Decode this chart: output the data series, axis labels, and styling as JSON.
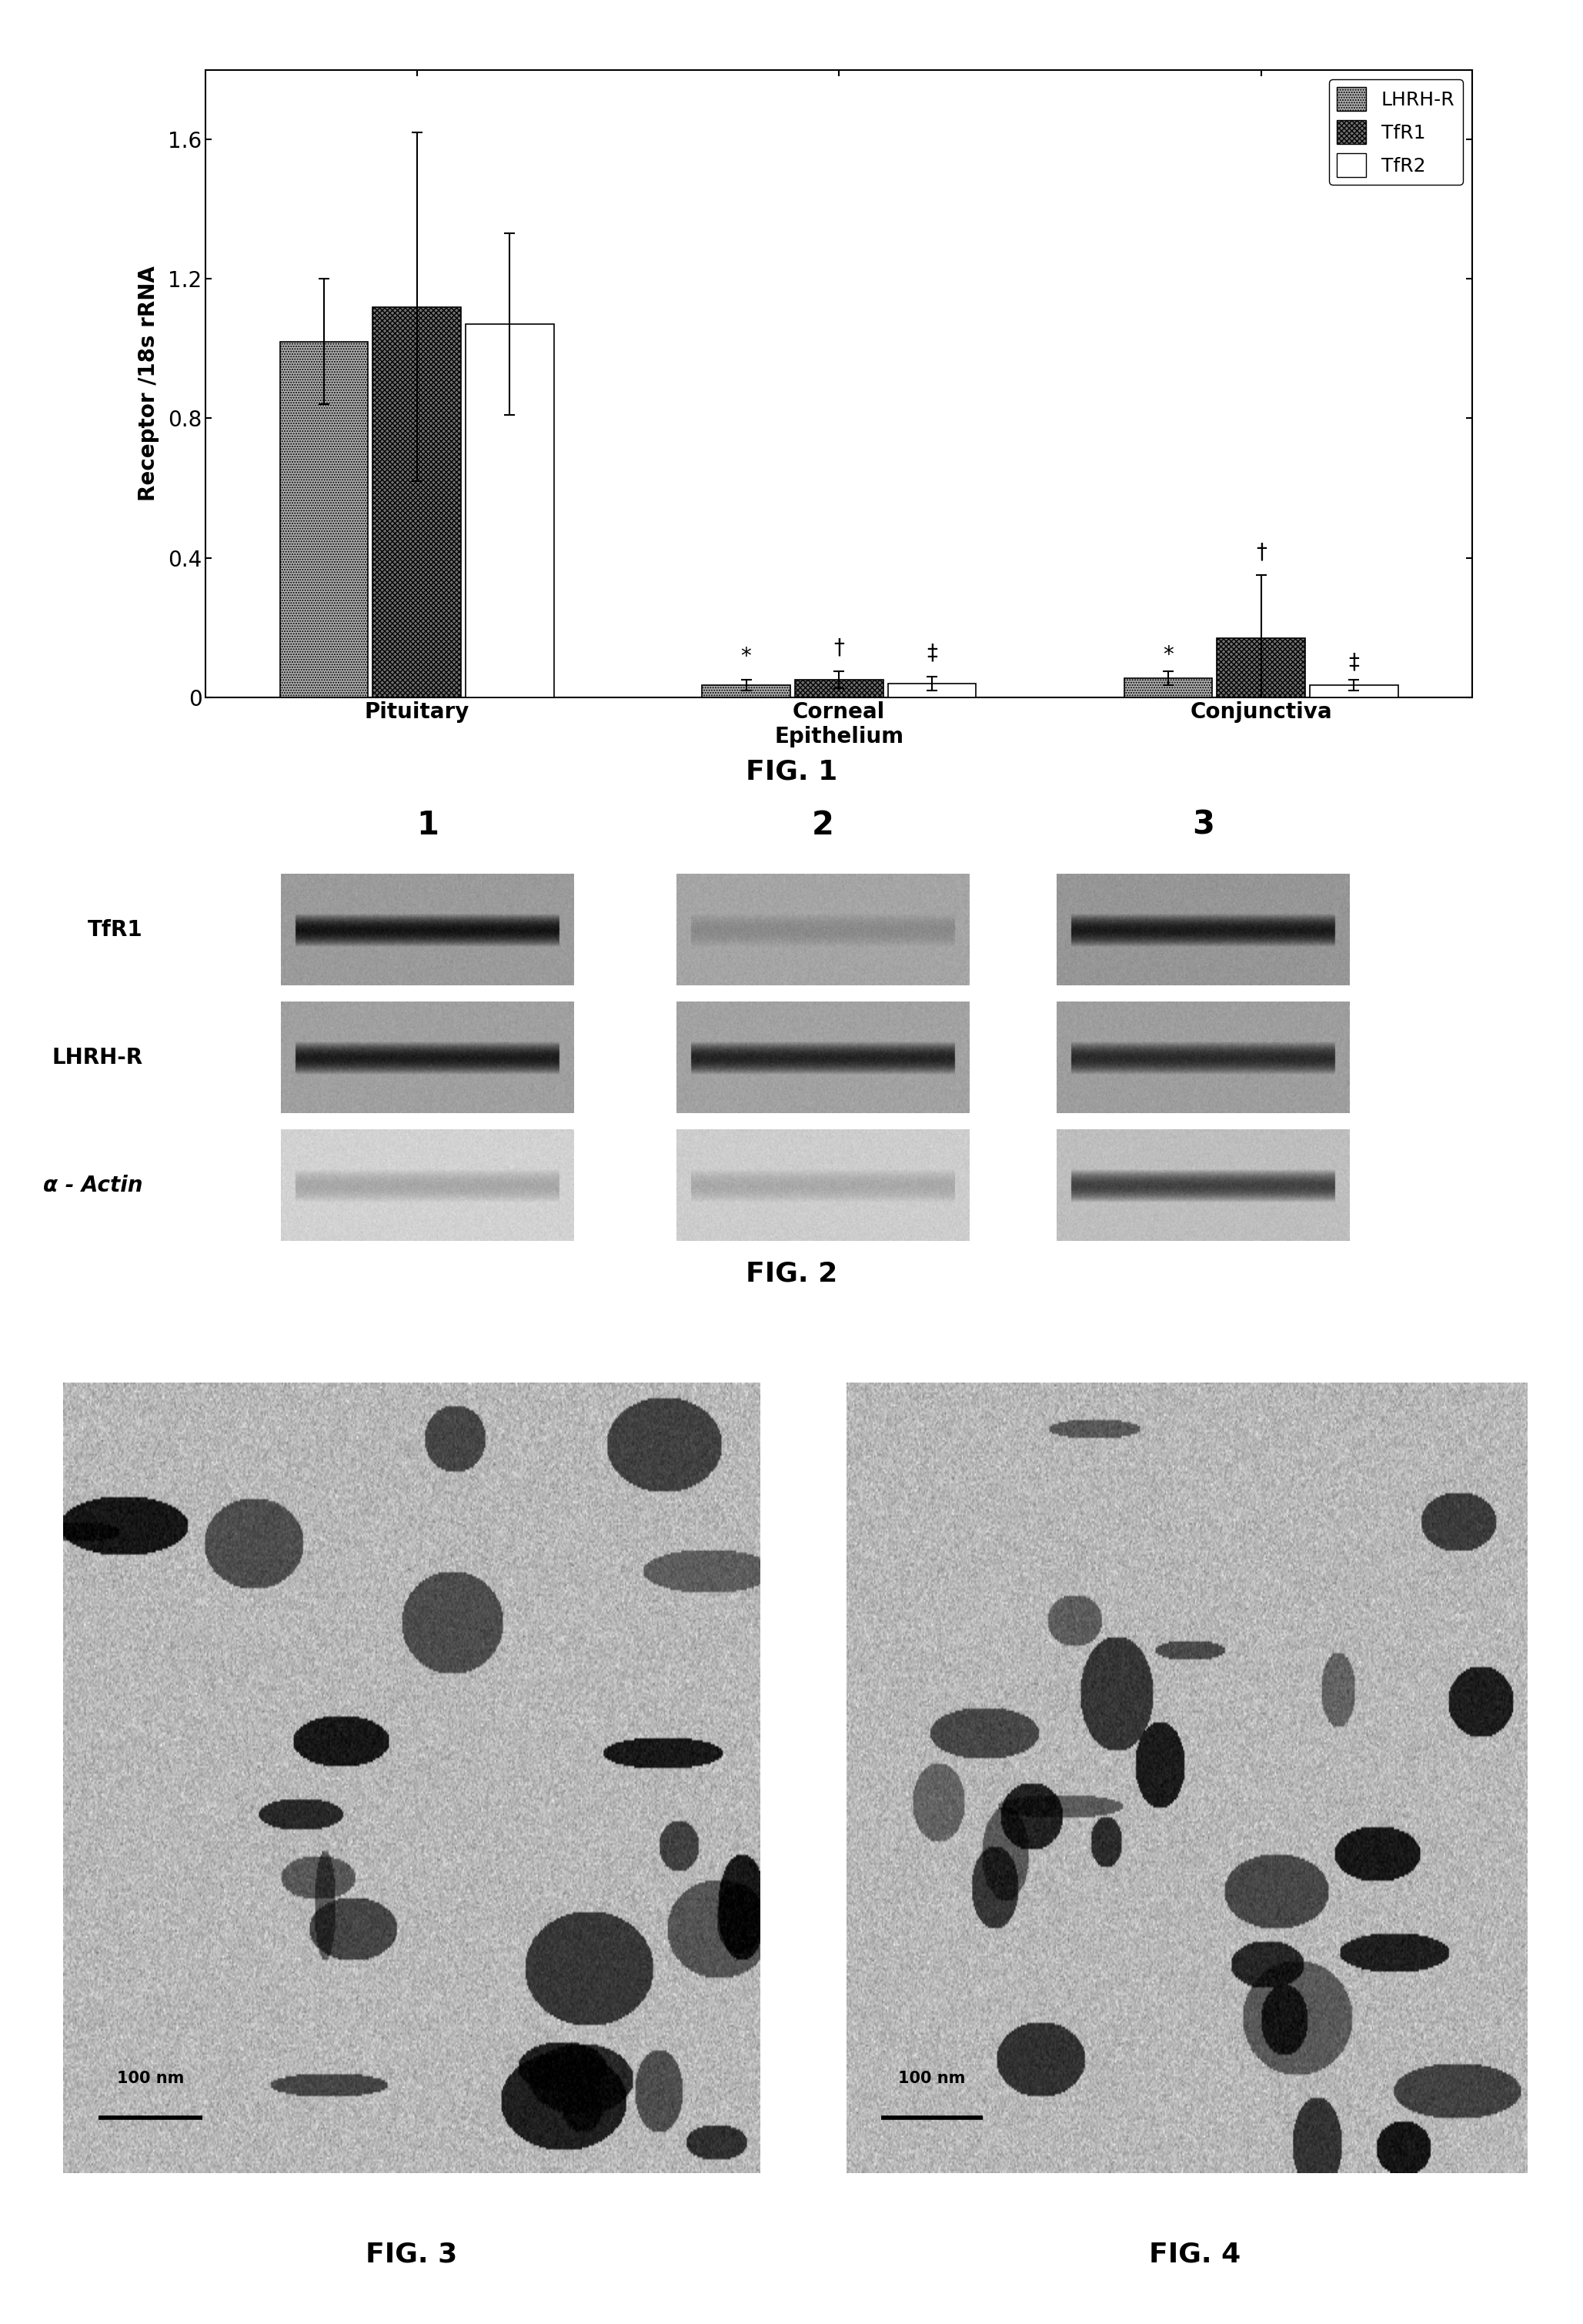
{
  "fig1": {
    "categories": [
      "Pituitary",
      "Corneal\nEpithelium",
      "Conjunctiva"
    ],
    "series": {
      "LHRH-R": {
        "values": [
          1.02,
          0.035,
          0.055
        ],
        "errors": [
          0.18,
          0.015,
          0.02
        ],
        "color": "#b0b0b0",
        "hatch": "....."
      },
      "TfR1": {
        "values": [
          1.12,
          0.05,
          0.17
        ],
        "errors": [
          0.5,
          0.025,
          0.18
        ],
        "color": "#707070",
        "hatch": "xxxxx"
      },
      "TfR2": {
        "values": [
          1.07,
          0.04,
          0.035
        ],
        "errors": [
          0.26,
          0.02,
          0.015
        ],
        "color": "#ffffff",
        "hatch": ""
      }
    },
    "ylabel": "Receptor /18s rRNA",
    "ylim": [
      0,
      1.8
    ],
    "yticks": [
      0,
      0.4,
      0.8,
      1.2,
      1.6
    ],
    "bar_width": 0.22
  },
  "fig2": {
    "col_labels": [
      "1",
      "2",
      "3"
    ],
    "row_labels": [
      "TfR1",
      "LHRH-R",
      "α - Actin"
    ],
    "blot_params": [
      [
        {
          "bg": 155,
          "intensity": 0.95,
          "faint": false
        },
        {
          "bg": 165,
          "intensity": 0.55,
          "faint": true
        },
        {
          "bg": 150,
          "intensity": 0.9,
          "faint": false
        }
      ],
      [
        {
          "bg": 160,
          "intensity": 0.9,
          "faint": false
        },
        {
          "bg": 162,
          "intensity": 0.85,
          "faint": false
        },
        {
          "bg": 158,
          "intensity": 0.8,
          "faint": false
        }
      ],
      [
        {
          "bg": 210,
          "intensity": 0.45,
          "faint": true
        },
        {
          "bg": 205,
          "intensity": 0.4,
          "faint": true
        },
        {
          "bg": 190,
          "intensity": 0.7,
          "faint": false
        }
      ]
    ]
  },
  "fig1_label": "FIG. 1",
  "fig2_label": "FIG. 2",
  "fig3_label": "FIG. 3",
  "fig4_label": "FIG. 4"
}
